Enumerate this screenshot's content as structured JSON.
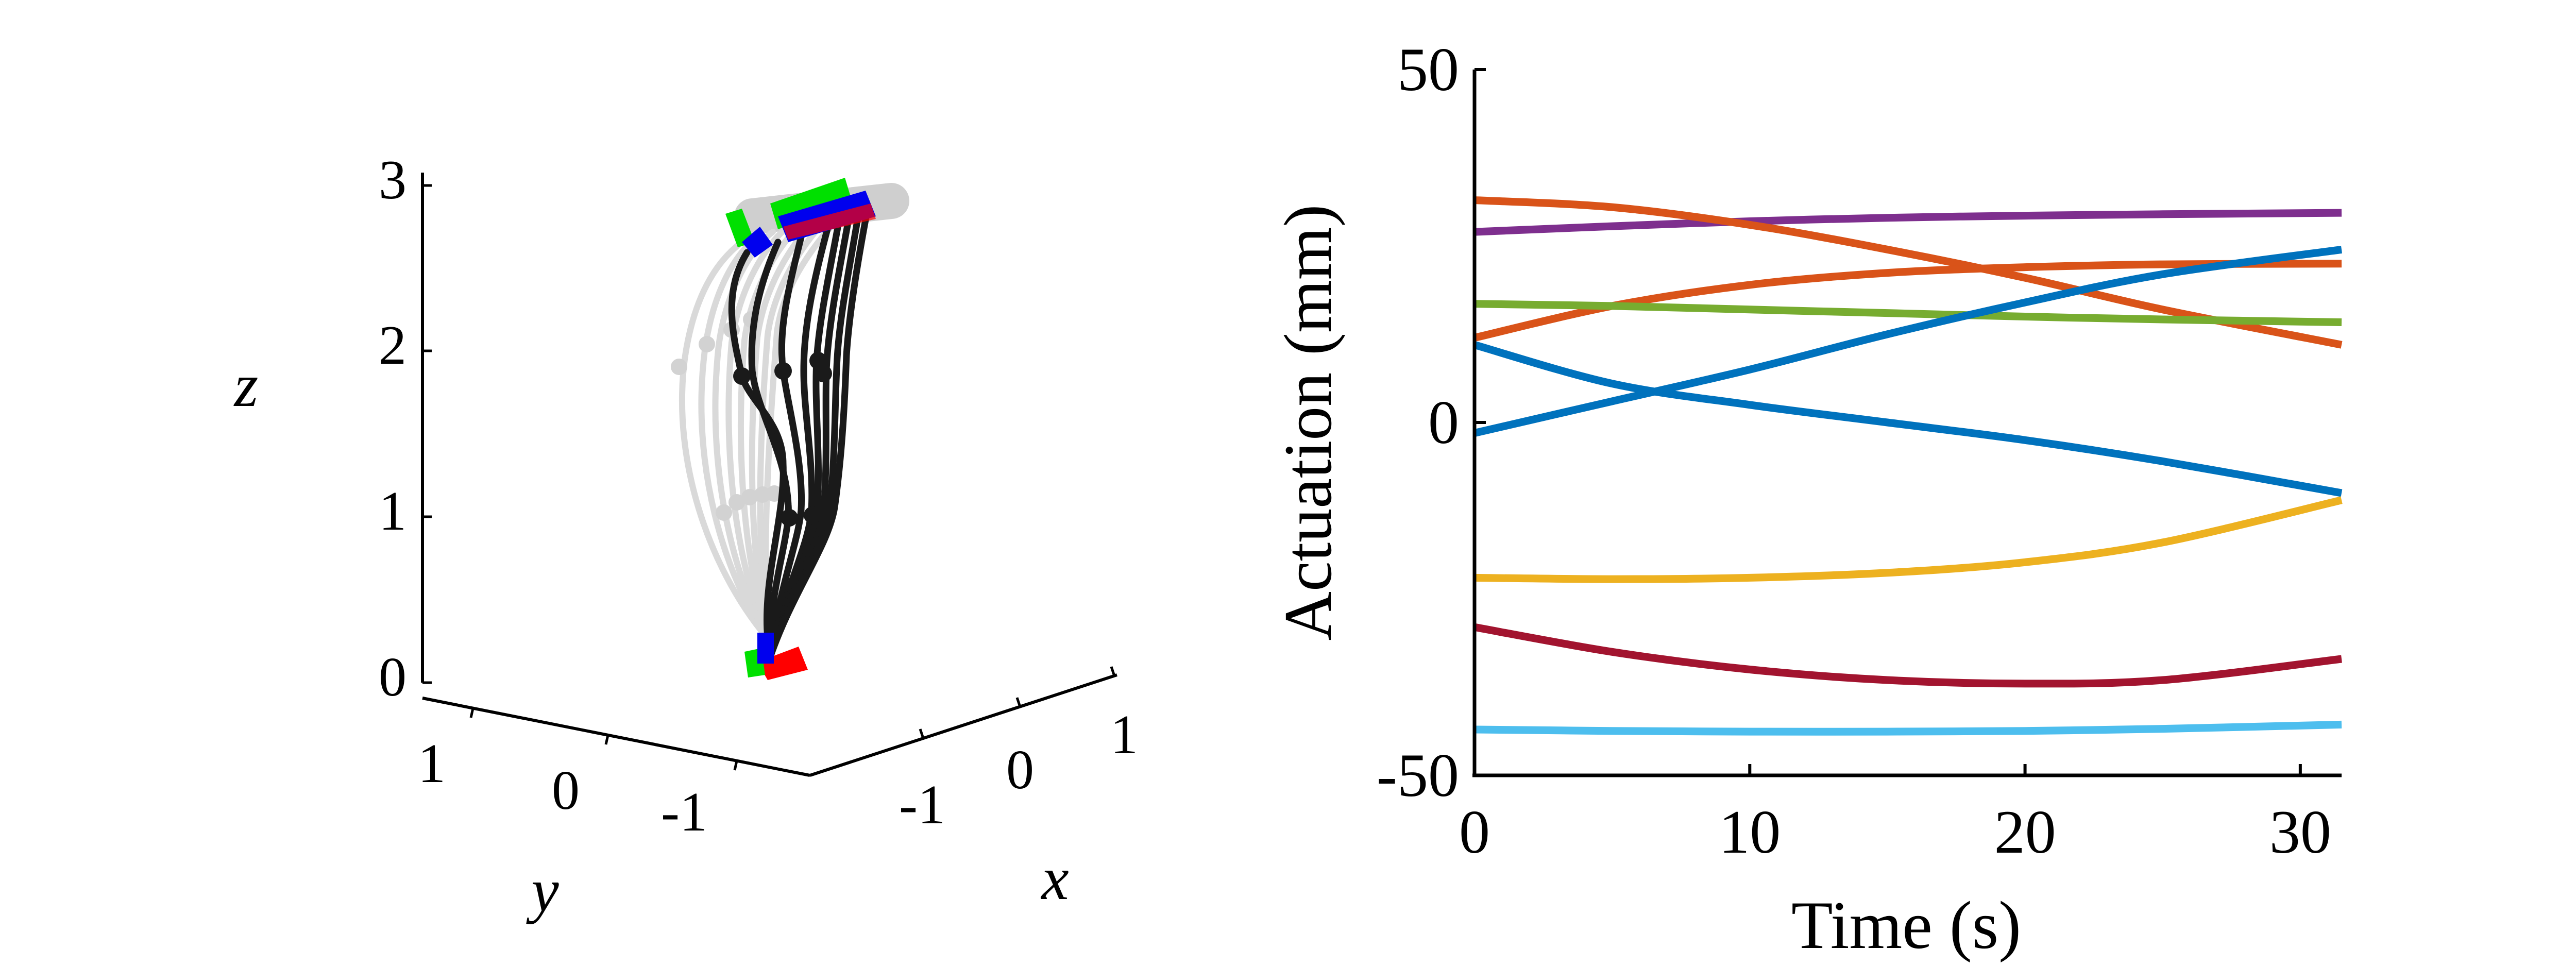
{
  "chart_data": [
    {
      "type": "line",
      "subtype": "3d-trajectory",
      "axes": {
        "x": {
          "label": "x",
          "ticks": [
            "-1",
            "0",
            "1"
          ]
        },
        "y": {
          "label": "y",
          "ticks": [
            "1",
            "0",
            "-1"
          ]
        },
        "z": {
          "label": "z",
          "ticks": [
            "0",
            "1",
            "2",
            "3"
          ],
          "range": [
            0,
            3
          ]
        }
      }
    },
    {
      "type": "line",
      "xlabel": "Time (s)",
      "ylabel": "Actuation (mm)",
      "xlim": [
        0,
        31.5
      ],
      "ylim": [
        -50,
        50
      ],
      "xticks": [
        0,
        10,
        20,
        30
      ],
      "yticks": [
        -50,
        0,
        50
      ],
      "grid": false,
      "x": [
        0,
        5,
        10,
        15,
        20,
        25,
        31.5
      ],
      "series": [
        {
          "color": "#7E2F8E",
          "values": [
            27,
            27.8,
            28.5,
            29,
            29.3,
            29.5,
            29.7
          ]
        },
        {
          "color": "#D95319",
          "values": [
            31.5,
            30.5,
            28,
            24.5,
            20.5,
            16,
            11
          ]
        },
        {
          "color": "#D95319",
          "values": [
            12,
            16.5,
            19.5,
            21.2,
            22,
            22.4,
            22.5
          ]
        },
        {
          "color": "#77AC30",
          "values": [
            16.8,
            16.5,
            16,
            15.5,
            15,
            14.6,
            14.2
          ]
        },
        {
          "color": "#0072BD",
          "values": [
            -1.5,
            3,
            7.5,
            12.5,
            17,
            21,
            24.5
          ]
        },
        {
          "color": "#0072BD",
          "values": [
            11,
            5.5,
            2.5,
            0,
            -2.5,
            -5.5,
            -10
          ]
        },
        {
          "color": "#EDB120",
          "values": [
            -22,
            -22.2,
            -22,
            -21.3,
            -19.8,
            -17,
            -11
          ]
        },
        {
          "color": "#A2142F",
          "values": [
            -29,
            -32.5,
            -35,
            -36.5,
            -37,
            -36.5,
            -33.5
          ]
        },
        {
          "color": "#4DBEEE",
          "values": [
            -43.5,
            -43.7,
            -43.8,
            -43.8,
            -43.7,
            -43.4,
            -42.8
          ]
        }
      ]
    }
  ]
}
